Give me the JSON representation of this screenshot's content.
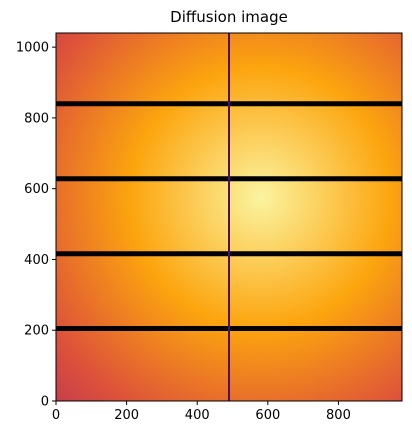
{
  "chart_data": {
    "type": "heatmap",
    "title": "Diffusion image",
    "xlabel": "",
    "ylabel": "",
    "xlim": [
      0,
      980
    ],
    "ylim": [
      0,
      1040
    ],
    "x_ticks": [
      0,
      200,
      400,
      600,
      800
    ],
    "y_ticks": [
      0,
      200,
      400,
      600,
      800,
      1000
    ],
    "grid": false,
    "colormap": "inferno",
    "intensity_peak": {
      "x": 580,
      "y": 575
    },
    "colors": {
      "peak": "#fbf4a0",
      "mid": "#fca50e",
      "edge": "#dd513a",
      "corner": "#c73e4c",
      "horizontal_gap": "#000004",
      "vertical_gap": "#4d0f6b"
    },
    "horizontal_gaps_y": [
      205,
      416,
      628,
      840
    ],
    "vertical_gaps_x": [
      490
    ]
  }
}
